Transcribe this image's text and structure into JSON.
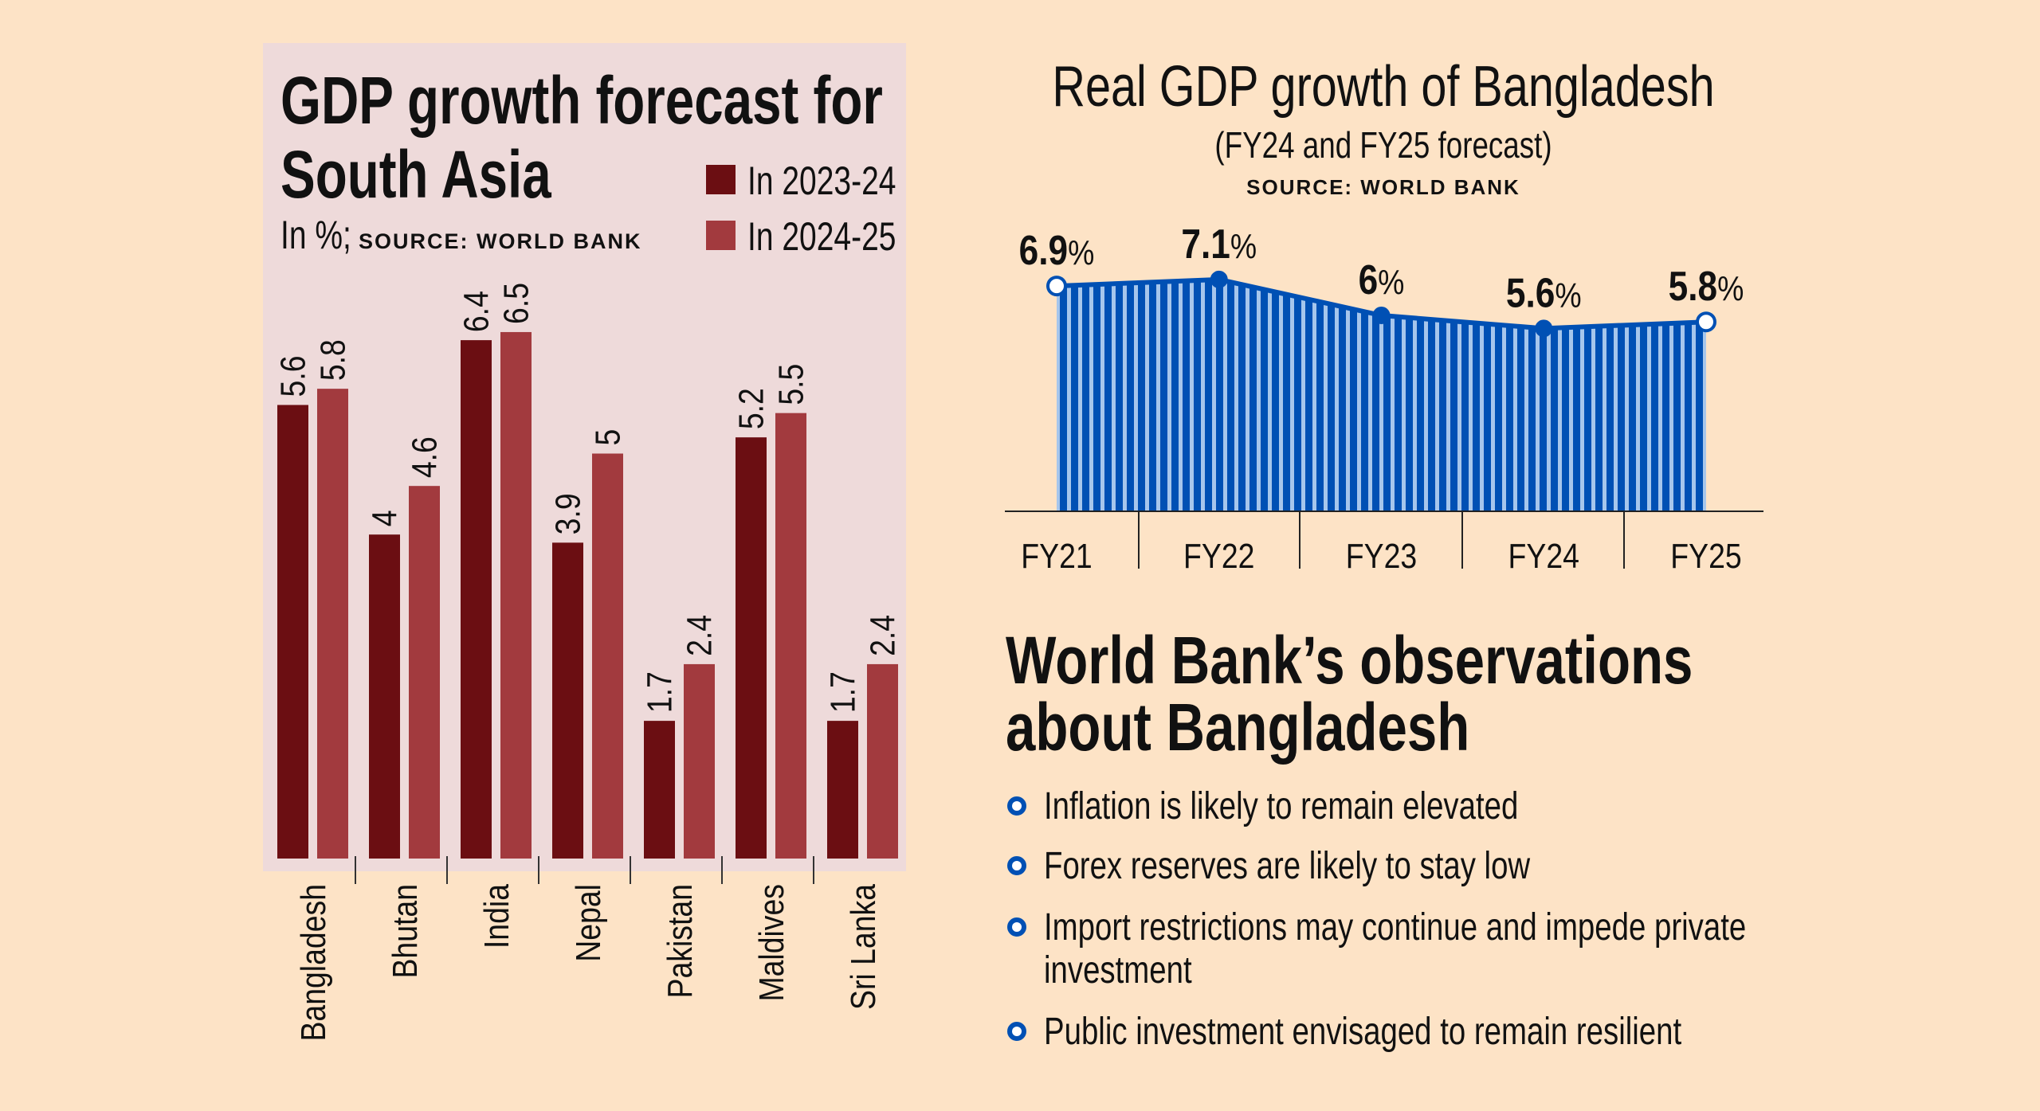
{
  "colors": {
    "background": "#FDE3C6",
    "panel": "#EEDADA",
    "series_2023_24": "#6B0E12",
    "series_2024_25": "#A23A3E",
    "line_blue": "#0050B4",
    "stripe_light": "#A6C6EC"
  },
  "chart_data": [
    {
      "type": "bar",
      "title": "GDP growth forecast for South Asia",
      "subtitle_unit": "In %;",
      "source": "SOURCE: WORLD BANK",
      "categories": [
        "Bangladesh",
        "Bhutan",
        "India",
        "Nepal",
        "Pakistan",
        "Maldives",
        "Sri Lanka"
      ],
      "series": [
        {
          "name": "In 2023-24",
          "values": [
            5.6,
            4,
            6.4,
            3.9,
            1.7,
            5.2,
            1.7
          ],
          "labels": [
            "5.6",
            "4",
            "6.4",
            "3.9",
            "1.7",
            "5.2",
            "1.7"
          ]
        },
        {
          "name": "In 2024-25",
          "values": [
            5.8,
            4.6,
            6.5,
            5,
            2.4,
            5.5,
            2.4
          ],
          "labels": [
            "5.8",
            "4.6",
            "6.5",
            "5",
            "2.4",
            "5.5",
            "2.4"
          ]
        }
      ],
      "legend": "top-right",
      "grid": false
    },
    {
      "type": "area",
      "title": "Real GDP growth of Bangladesh",
      "subtitle": "(FY24 and FY25 forecast)",
      "source": "SOURCE: WORLD BANK",
      "categories": [
        "FY21",
        "FY22",
        "FY23",
        "FY24",
        "FY25"
      ],
      "values": [
        6.9,
        7.1,
        6,
        5.6,
        5.8
      ],
      "labels": [
        "6.9",
        "7.1",
        "6",
        "5.6",
        "5.8"
      ],
      "unit": "%",
      "grid": false
    }
  ],
  "observations": {
    "heading_line1": "World Bank’s observations",
    "heading_line2": "about Bangladesh",
    "items": [
      {
        "line1": "Inflation is likely to remain elevated"
      },
      {
        "line1": "Forex reserves are likely to stay low"
      },
      {
        "line1": "Import restrictions may continue and impede private",
        "line2": "investment"
      },
      {
        "line1": "Public investment envisaged to remain resilient"
      }
    ]
  }
}
